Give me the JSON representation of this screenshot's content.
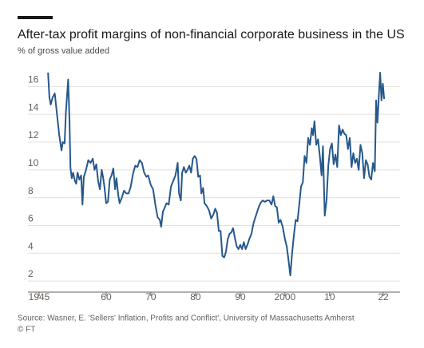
{
  "chart_data": {
    "type": "line",
    "title": "After-tax profit margins of non-financial corporate business in the US",
    "subtitle": "% of gross value added",
    "source": "Source: Wasner, E. 'Sellers' Inflation, Profits and Conflict', University of Massachusetts Amherst",
    "credit": "© FT",
    "x": [
      1947.0,
      1947.3,
      1947.6,
      1948,
      1948.5,
      1949,
      1949.5,
      1950,
      1950.3,
      1950.7,
      1951,
      1951.5,
      1951.8,
      1952,
      1952.3,
      1952.6,
      1953,
      1953.3,
      1953.6,
      1954,
      1954.4,
      1954.7,
      1955,
      1955.5,
      1956,
      1956.5,
      1957,
      1957.4,
      1957.8,
      1958.2,
      1958.6,
      1959,
      1959.3,
      1959.6,
      1960,
      1960.4,
      1960.8,
      1961.2,
      1961.6,
      1962,
      1962.3,
      1962.7,
      1963,
      1963.5,
      1964,
      1964.5,
      1965,
      1965.5,
      1966,
      1966.5,
      1967,
      1967.5,
      1968,
      1968.5,
      1969,
      1969.4,
      1970,
      1970.5,
      1971,
      1971.5,
      1972,
      1972.3,
      1972.7,
      1973,
      1973.5,
      1974,
      1974.5,
      1975,
      1975.5,
      1976,
      1976.3,
      1976.7,
      1977,
      1977.4,
      1977.8,
      1978.2,
      1978.6,
      1979,
      1979.4,
      1979.8,
      1980.2,
      1980.6,
      1981,
      1981.3,
      1981.7,
      1982,
      1982.5,
      1983,
      1983.5,
      1984,
      1984.4,
      1984.8,
      1985.2,
      1985.6,
      1986,
      1986.4,
      1986.8,
      1987.2,
      1987.6,
      1988,
      1988.4,
      1988.8,
      1989.2,
      1989.6,
      1990,
      1990.4,
      1990.8,
      1991.2,
      1991.6,
      1992,
      1992.5,
      1993,
      1993.5,
      1994,
      1994.5,
      1995,
      1995.5,
      1996,
      1996.5,
      1997,
      1997.4,
      1997.8,
      1998.2,
      1998.6,
      1999,
      1999.5,
      2000,
      2000.4,
      2000.8,
      2001.2,
      2001.6,
      2002,
      2002.4,
      2002.8,
      2003.2,
      2003.6,
      2004,
      2004.4,
      2004.8,
      2005.2,
      2005.6,
      2006,
      2006.3,
      2006.6,
      2007,
      2007.4,
      2007.8,
      2008.2,
      2008.5,
      2008.9,
      2009.3,
      2009.7,
      2010.1,
      2010.5,
      2010.9,
      2011.3,
      2011.7,
      2012.1,
      2012.5,
      2012.9,
      2013.3,
      2013.7,
      2014.1,
      2014.5,
      2014.9,
      2015.3,
      2015.7,
      2016.1,
      2016.5,
      2016.9,
      2017.3,
      2017.7,
      2018.1,
      2018.5,
      2018.9,
      2019.3,
      2019.7,
      2020.1,
      2020.4,
      2020.7,
      2021,
      2021.3,
      2021.6,
      2021.9,
      2022.2
    ],
    "values": [
      17.0,
      15.2,
      14.7,
      15.2,
      15.5,
      14.0,
      12.5,
      11.4,
      12.0,
      11.9,
      14.2,
      16.5,
      13.5,
      10.2,
      9.4,
      9.8,
      9.2,
      9.0,
      9.8,
      9.3,
      9.6,
      7.5,
      9.5,
      10.0,
      10.7,
      10.5,
      10.8,
      10.0,
      10.4,
      9.2,
      8.6,
      10.0,
      9.5,
      8.8,
      7.6,
      7.7,
      9.3,
      9.6,
      10.1,
      8.6,
      9.4,
      8.2,
      7.6,
      8.0,
      8.5,
      8.3,
      8.3,
      8.8,
      9.7,
      10.3,
      10.2,
      10.7,
      10.5,
      9.8,
      9.5,
      9.6,
      8.9,
      8.6,
      7.5,
      6.6,
      6.4,
      5.9,
      7.0,
      7.2,
      7.6,
      7.5,
      8.8,
      9.2,
      9.6,
      10.5,
      8.3,
      7.8,
      9.8,
      10.2,
      9.8,
      10.0,
      10.3,
      9.8,
      10.8,
      11.0,
      10.8,
      9.5,
      9.6,
      8.3,
      8.7,
      7.6,
      7.4,
      7.1,
      6.5,
      6.8,
      7.2,
      6.9,
      5.6,
      5.6,
      3.8,
      3.7,
      4.1,
      5.0,
      5.4,
      5.5,
      5.8,
      5.1,
      4.5,
      4.3,
      4.6,
      4.3,
      4.8,
      4.3,
      4.6,
      5.0,
      5.4,
      6.2,
      6.7,
      7.2,
      7.6,
      7.8,
      7.7,
      7.8,
      7.8,
      7.5,
      8.1,
      7.4,
      7.3,
      6.2,
      6.4,
      5.9,
      5.0,
      4.5,
      3.5,
      2.4,
      4.0,
      5.3,
      6.4,
      6.3,
      7.5,
      8.8,
      9.1,
      11.0,
      10.5,
      12.3,
      11.8,
      13.0,
      12.5,
      13.5,
      11.8,
      12.2,
      11.0,
      9.6,
      11.7,
      6.7,
      7.8,
      10.3,
      11.5,
      11.9,
      10.4,
      11.1,
      10.2,
      13.2,
      12.5,
      12.9,
      12.6,
      12.5,
      11.5,
      12.3,
      10.2,
      11.2,
      10.5,
      10.8,
      10.0,
      11.8,
      11.2,
      9.4,
      10.7,
      10.4,
      9.5,
      9.3,
      10.5,
      9.9,
      15.0,
      13.4,
      15.3,
      17.0,
      15.0,
      16.2,
      15.1
    ],
    "color": "#26588b",
    "xlim": [
      1942.5,
      2025.75
    ],
    "ylim": [
      1.2,
      17.4
    ],
    "xticks": [
      1945,
      {
        "value": 1960,
        "label": "60"
      },
      {
        "value": 1970,
        "label": "70"
      },
      {
        "value": 1980,
        "label": "80"
      },
      {
        "value": 1990,
        "label": "90"
      },
      2000,
      {
        "value": 2010,
        "label": "10"
      },
      {
        "value": 2022,
        "label": "22"
      }
    ],
    "yticks": [
      2,
      4,
      6,
      8,
      10,
      12,
      14,
      16
    ],
    "grid": true
  }
}
